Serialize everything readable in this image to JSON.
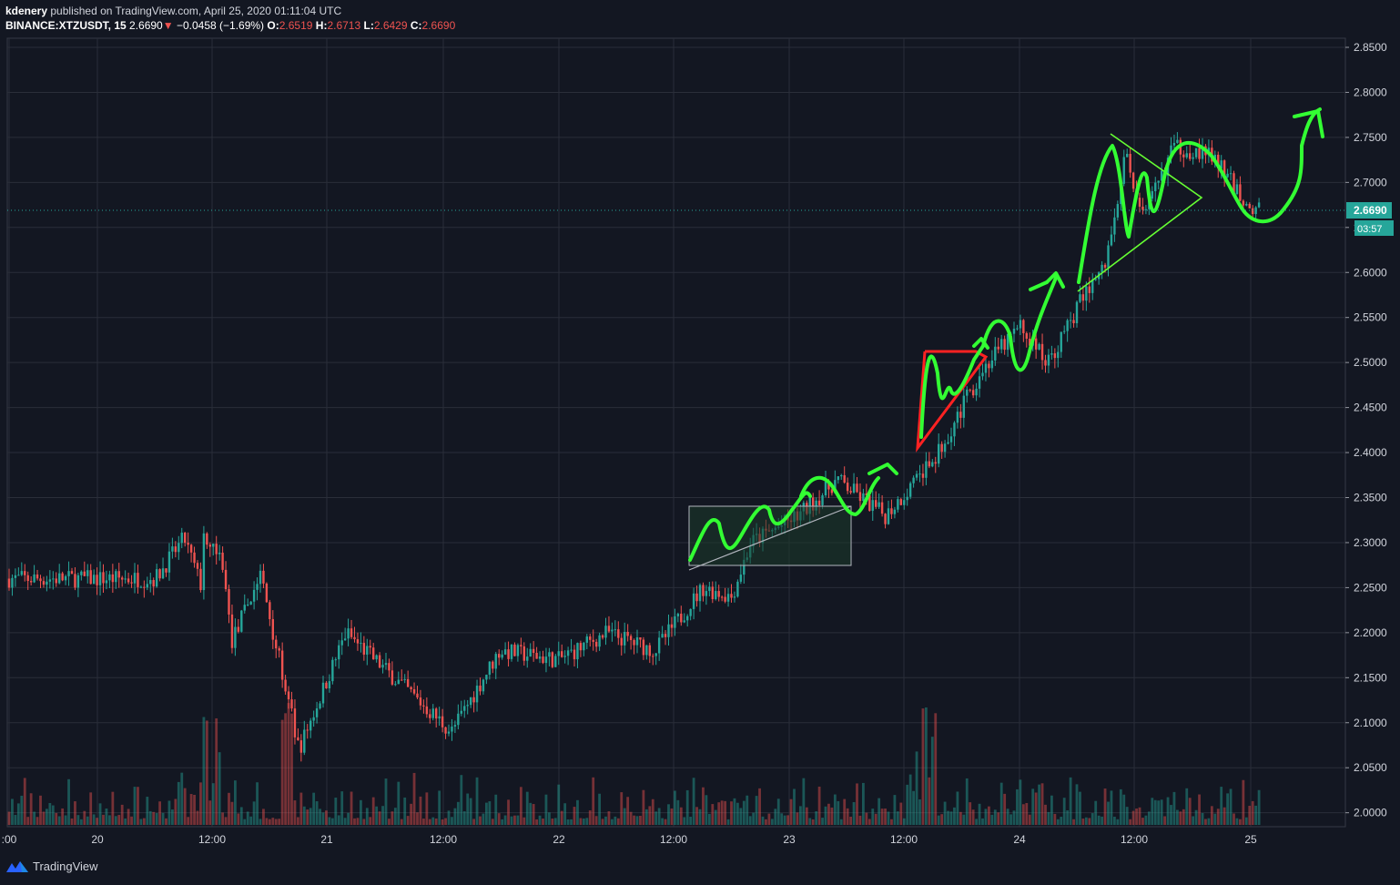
{
  "header": {
    "publisher": "kdenery",
    "published_text": "published on TradingView.com, April 25, 2020 01:11:04 UTC",
    "symbol": "BINANCE:XTZUSDT, 15",
    "last": "2.6690",
    "change_arrow": "▼",
    "change": "−0.0458 (−1.69%)",
    "o_label": "O:",
    "o": "2.6519",
    "h_label": "H:",
    "h": "2.6713",
    "l_label": "L:",
    "l": "2.6429",
    "c_label": "C:",
    "c": "2.6690"
  },
  "footer": {
    "brand": "TradingView",
    "icon": "tradingview-logo-icon"
  },
  "colors": {
    "background": "#131722",
    "up": "#26a69a",
    "down": "#ef5350",
    "grid": "#2a2e39",
    "drawing_green": "#33ff33",
    "drawing_red": "#ff2222",
    "price_line": "#26a69a"
  },
  "chart_data": {
    "type": "candlestick",
    "y_axis": {
      "ticks": [
        "2.8500",
        "2.8000",
        "2.7500",
        "2.7000",
        "2.6500",
        "2.6000",
        "2.5500",
        "2.5000",
        "2.4500",
        "2.4000",
        "2.3500",
        "2.3000",
        "2.2500",
        "2.2000",
        "2.1500",
        "2.1000",
        "2.0500",
        "2.0000"
      ],
      "range": [
        1.99,
        2.855
      ]
    },
    "x_axis": {
      "ticks": [
        ":00",
        "20",
        "12:00",
        "21",
        "12:00",
        "22",
        "12:00",
        "23",
        "12:00",
        "24",
        "12:00",
        "25"
      ]
    },
    "current_price": "2.6690",
    "countdown": "03:57",
    "price_path": [
      {
        "x": "19 18:00",
        "y": 2.26
      },
      {
        "x": "19 21:00",
        "y": 2.305
      },
      {
        "x": "19 23:00",
        "y": 2.245
      },
      {
        "x": "20 04:00",
        "y": 2.29
      },
      {
        "x": "20 09:00",
        "y": 2.35
      },
      {
        "x": "20 13:00",
        "y": 2.28
      },
      {
        "x": "20 14:00",
        "y": 2.19
      },
      {
        "x": "20 17:00",
        "y": 2.265
      },
      {
        "x": "20 21:00",
        "y": 2.07
      },
      {
        "x": "21 02:00",
        "y": 2.2
      },
      {
        "x": "21 06:00",
        "y": 2.16
      },
      {
        "x": "21 10:00",
        "y": 2.12
      },
      {
        "x": "21 13:00",
        "y": 2.09
      },
      {
        "x": "21 18:00",
        "y": 2.18
      },
      {
        "x": "22 00:00",
        "y": 2.17
      },
      {
        "x": "22 05:00",
        "y": 2.2
      },
      {
        "x": "22 10:00",
        "y": 2.18
      },
      {
        "x": "22 15:00",
        "y": 2.25
      },
      {
        "x": "22 18:00",
        "y": 2.24
      },
      {
        "x": "22 20:00",
        "y": 2.3
      },
      {
        "x": "23 01:00",
        "y": 2.33
      },
      {
        "x": "23 05:00",
        "y": 2.37
      },
      {
        "x": "23 10:00",
        "y": 2.33
      },
      {
        "x": "23 15:00",
        "y": 2.39
      },
      {
        "x": "23 20:00",
        "y": 2.49
      },
      {
        "x": "24 00:00",
        "y": 2.54
      },
      {
        "x": "24 03:00",
        "y": 2.5
      },
      {
        "x": "24 07:00",
        "y": 2.58
      },
      {
        "x": "24 09:00",
        "y": 2.61
      },
      {
        "x": "24 11:00",
        "y": 2.73
      },
      {
        "x": "24 13:00",
        "y": 2.66
      },
      {
        "x": "24 16:00",
        "y": 2.74
      },
      {
        "x": "24 20:00",
        "y": 2.73
      },
      {
        "x": "25 00:00",
        "y": 2.67
      }
    ],
    "volume_note": "Volume histogram overlaid at bottom (unlabeled scale)"
  }
}
